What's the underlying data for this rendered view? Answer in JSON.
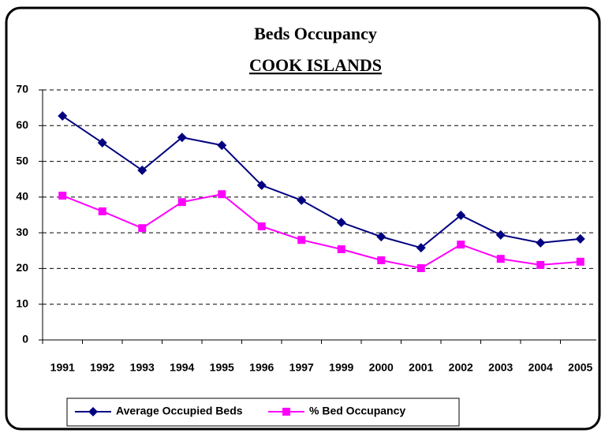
{
  "chart_data": {
    "type": "line",
    "title": "Beds Occupancy",
    "subtitle": "COOK ISLANDS",
    "categories": [
      "1991",
      "1992",
      "1993",
      "1994",
      "1995",
      "1996",
      "1997",
      "1999",
      "2000",
      "2001",
      "2002",
      "2003",
      "2004",
      "2005"
    ],
    "series": [
      {
        "name": "Average Occupied Beds",
        "color": "#000080",
        "marker": "diamond",
        "values": [
          62.7,
          55.2,
          47.5,
          56.7,
          54.5,
          43.3,
          39.1,
          32.9,
          28.9,
          25.8,
          34.9,
          29.4,
          27.2,
          28.3
        ]
      },
      {
        "name": "% Bed Occupancy",
        "color": "#ff00ff",
        "marker": "square",
        "values": [
          40.4,
          36,
          31.3,
          38.6,
          40.8,
          31.8,
          28,
          25.4,
          22.3,
          20.1,
          26.7,
          22.7,
          21,
          21.9
        ]
      }
    ],
    "ylim": [
      0,
      70
    ],
    "yticks": [
      0,
      10,
      20,
      30,
      40,
      50,
      60,
      70
    ],
    "grid": true,
    "legend": "bottom"
  }
}
